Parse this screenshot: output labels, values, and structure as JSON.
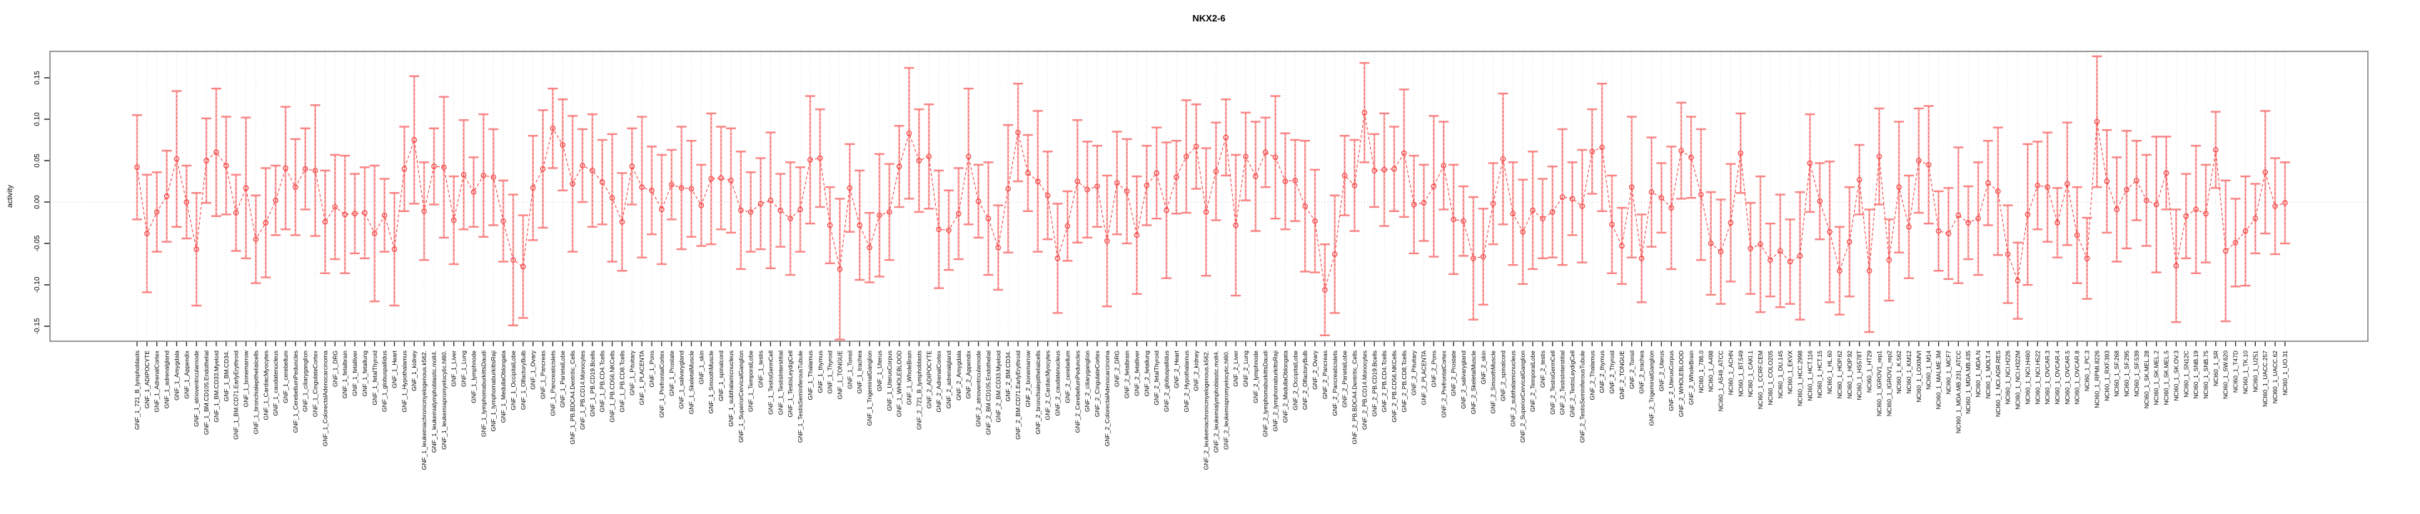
{
  "figure": {
    "title": "NKX2-6",
    "ylabel": "activity"
  },
  "chart_data": {
    "type": "line",
    "subtype": "point-with-error-bars",
    "title": "NKX2-6",
    "xlabel": "",
    "ylabel": "activity",
    "ylim": [
      -0.168,
      0.182
    ],
    "yticks": [
      0.15,
      0.1,
      0.05,
      0.0,
      -0.05,
      -0.1,
      -0.15
    ],
    "ytick_labels": [
      "0.15",
      "0.10",
      "0.05",
      "0.00",
      "-0.05",
      "-0.10",
      "-0.15"
    ],
    "grid": "vertical dotted gridline at every category; dotted horizontal line at zero",
    "legend": "none",
    "colors": {
      "point": "#f64545",
      "line": "#f64545",
      "error_stem": "#f9a0a0",
      "error_cap": "#f98383",
      "gridline": "#d9d9d9",
      "zero_line": "#d0d0d0",
      "box": "#808080",
      "tick": "#222222"
    },
    "categories": [
      "GNF_1_721_B_lymphoblasts",
      "GNF_1_ADIPOCYTE",
      "GNF_1_AdrenalCortex",
      "GNF_1_adrenalgland",
      "GNF_1_Amygdala",
      "GNF_1_Appendix",
      "GNF_1_atrioventricularnode",
      "GNF_1_BM.CD105.Endothelial",
      "GNF_1_BM.CD33.Myeloid",
      "GNF_1_BM.CD34.",
      "GNF_1_BM.CD71.EarlyErythroid",
      "GNF_1_bonemarrow",
      "GNF_1_bronchialepithelialcells",
      "GNF_1_CardiacMyocytes",
      "GNF_1_caudatenucleus",
      "GNF_1_cerebellum",
      "GNF_1_CerebellumPeduncles",
      "GNF_1_ciliaryganglion",
      "GNF_1_CingulateCortex",
      "GNF_1_ColorectalAdenocarcinoma",
      "GNF_1_DRG",
      "GNF_1_fetalbrain",
      "GNF_1_fetalliver",
      "GNF_1_fetallung",
      "GNF_1_fetalThyroid",
      "GNF_1_globuspallidus",
      "GNF_1_Heart",
      "GNF_1_Hypothalamus",
      "GNF_1_kidney",
      "GNF_1_leukemiachronicmyelogenous.k562.",
      "GNF_1_leukemialymphoblastic.molt4.",
      "GNF_1_leukemiapromyelocytic.hl60.",
      "GNF_1_Liver",
      "GNF_1_Lung",
      "GNF_1_lymphnode",
      "GNF_1_lymphomaburkittsDaudi",
      "GNF_1_lymphomaburkittsRaji",
      "GNF_1_MedullaOblongata",
      "GNF_1_OccipitalLobe",
      "GNF_1_OlfactoryBulb",
      "GNF_1_Ovary",
      "GNF_1_Pancreas",
      "GNF_1_Pancreaticislets",
      "GNF_1_ParietalLobe",
      "GNF_1_PB.BDCA4.Dentritic_Cells",
      "GNF_1_PB.CD14.Monocytes",
      "GNF_1_PB.CD19.Bcells",
      "GNF_1_PB.CD4.Tcells",
      "GNF_1_PB.CD56.NKCells",
      "GNF_1_PB.CD8.Tcells",
      "GNF_1_Pituitary",
      "GNF_1_PLACENTA",
      "GNF_1_Pons",
      "GNF_1_PrefrontalCortex",
      "GNF_1_Prostate",
      "GNF_1_salivarygland",
      "GNF_1_SkeletalMuscle",
      "GNF_1_skin",
      "GNF_1_SmoothMuscle",
      "GNF_1_spinalcord",
      "GNF_1_subthalamicnucleus",
      "GNF_1_SuperiorCervicalGanglion",
      "GNF_1_TemporalLobe",
      "GNF_1_testis",
      "GNF_1_TestisGermCell",
      "GNF_1_TestisInterstitial",
      "GNF_1_TestisLeydigCell",
      "GNF_1_TestisSeminiferousTubule",
      "GNF_1_Thalamus",
      "GNF_1_thymus",
      "GNF_1_Thyroid",
      "GNF_1_TONGUE",
      "GNF_1_Tonsil",
      "GNF_1_trachea",
      "GNF_1_TrigeminalGanglion",
      "GNF_1_Uterus",
      "GNF_1_UterusCorpus",
      "GNF_1_WHOLEBLOOD",
      "GNF_1_WholeBrain",
      "GNF_2_721_B_lymphoblasts",
      "GNF_2_ADIPOCYTE",
      "GNF_2_AdrenalCortex",
      "GNF_2_adrenalgland",
      "GNF_2_Amygdala",
      "GNF_2_Appendix",
      "GNF_2_atrioventricularnode",
      "GNF_2_BM.CD105.Endothelial",
      "GNF_2_BM.CD33.Myeloid",
      "GNF_2_BM.CD34.",
      "GNF_2_BM.CD71.EarlyErythroid",
      "GNF_2_bonemarrow",
      "GNF_2_bronchialepithelialcells",
      "GNF_2_CardiacMyocytes",
      "GNF_2_caudatenucleus",
      "GNF_2_cerebellum",
      "GNF_2_CerebellumPeduncles",
      "GNF_2_ciliaryganglion",
      "GNF_2_CingulateCortex",
      "GNF_2_ColorectalAdenocarcinoma",
      "GNF_2_DRG",
      "GNF_2_fetalbrain",
      "GNF_2_fetalliver",
      "GNF_2_fetallung",
      "GNF_2_fetalThyroid",
      "GNF_2_globuspallidus",
      "GNF_2_Heart",
      "GNF_2_Hypothalamus",
      "GNF_2_kidney",
      "GNF_2_leukemiachronicmyelogenous.k562.",
      "GNF_2_leukemialymphoblastic.molt4.",
      "GNF_2_leukemiapromyelocytic.hl60.",
      "GNF_2_Liver",
      "GNF_2_Lung",
      "GNF_2_lymphnode",
      "GNF_2_lymphomaburkittsDaudi",
      "GNF_2_lymphomaburkittsRaji",
      "GNF_2_MedullaOblongata",
      "GNF_2_OccipitalLobe",
      "GNF_2_OlfactoryBulb",
      "GNF_2_Ovary",
      "GNF_2_Pancreas",
      "GNF_2_Pancreaticislets",
      "GNF_2_ParietalLobe",
      "GNF_2_PB.BDCA4.Dentritic_Cells",
      "GNF_2_PB.CD14.Monocytes",
      "GNF_2_PB.CD19.Bcells",
      "GNF_2_PB.CD4.Tcells",
      "GNF_2_PB.CD56.NKCells",
      "GNF_2_PB.CD8.Tcells",
      "GNF_2_Pituitary",
      "GNF_2_PLACENTA",
      "GNF_2_Pons",
      "GNF_2_PrefrontalCortex",
      "GNF_2_Prostate",
      "GNF_2_salivarygland",
      "GNF_2_SkeletalMuscle",
      "GNF_2_skin",
      "GNF_2_SmoothMuscle",
      "GNF_2_spinalcord",
      "GNF_2_subthalamicnucleus",
      "GNF_2_SuperiorCervicalGanglion",
      "GNF_2_TemporalLobe",
      "GNF_2_testis",
      "GNF_2_TestisGermCell",
      "GNF_2_TestisInterstitial",
      "GNF_2_TestisLeydigCell",
      "GNF_2_TestisSeminiferousTubule",
      "GNF_2_Thalamus",
      "GNF_2_thymus",
      "GNF_2_Thyroid",
      "GNF_2_TONGUE",
      "GNF_2_Tonsil",
      "GNF_2_trachea",
      "GNF_2_TrigeminalGanglion",
      "GNF_2_Uterus",
      "GNF_2_UterusCorpus",
      "GNF_2_WHOLEBLOOD",
      "GNF_2_WholeBrain",
      "NCI60_1_786.0",
      "NCI60_1_A498",
      "NCI60_1_A549_ATCC",
      "NCI60_1_ACHN",
      "NCI60_1_BT.549",
      "NCI60_1_CAKI.1",
      "NCI60_1_CCRF.CEM",
      "NCI60_1_COLO205",
      "NCI60_1_DU.145",
      "NCI60_1_EKVX",
      "NCI60_1_HCC.2998",
      "NCI60_1_HCT.116",
      "NCI60_1_HCT.15",
      "NCI60_1_HL.60",
      "NCI60_1_HOP.62",
      "NCI60_1_HOP.92",
      "NCI60_1_HS578T",
      "NCI60_1_HT29",
      "NCI60_1_IGROV1_rep1",
      "NCI60_1_IGROV1_rep2",
      "NCI60_1_K.562",
      "NCI60_1_KM12",
      "NCI60_1_LOXIMVI",
      "NCI60_1_M14",
      "NCI60_1_MALME.3M",
      "NCI60_1_MCF7",
      "NCI60_1_MDA.MB.231_ATCC",
      "NCI60_1_MDA.MB.435",
      "NCI60_1_MDA.N",
      "NCI60_1_MOLT.4",
      "NCI60_1_NCI.ADR.RES",
      "NCI60_1_NCI.H226",
      "NCI60_1_NCI.H322M",
      "NCI60_1_NCI.H460",
      "NCI60_1_NCI.H522",
      "NCI60_1_OVCAR.3",
      "NCI60_1_OVCAR.4",
      "NCI60_1_OVCAR.5",
      "NCI60_1_OVCAR.8",
      "NCI60_1_PC.3",
      "NCI60_1_RPMI.8226",
      "NCI60_1_RXF.393",
      "NCI60_1_SF.268",
      "NCI60_1_SF.295",
      "NCI60_1_SF.539",
      "NCI60_1_SK.MEL.28",
      "NCI60_1_SK.MEL.2",
      "NCI60_1_SK.MEL.5",
      "NCI60_1_SK.OV.3",
      "NCI60_1_SN12C",
      "NCI60_1_SNB.19",
      "NCI60_1_SNB.75",
      "NCI60_1_SR",
      "NCI60_1_SW.620",
      "NCI60_1_T47D",
      "NCI60_1_TK.10",
      "NCI60_1_U251",
      "NCI60_1_UACC.257",
      "NCI60_1_UACC.62",
      "NCI60_1_UO.31"
    ],
    "values": [
      0.042,
      -0.038,
      -0.012,
      0.007,
      0.052,
      0.0,
      -0.057,
      0.05,
      0.06,
      0.044,
      -0.013,
      0.017,
      -0.045,
      -0.025,
      0.002,
      0.041,
      0.018,
      0.04,
      0.038,
      -0.024,
      -0.006,
      -0.015,
      -0.014,
      -0.013,
      -0.038,
      -0.016,
      -0.057,
      0.04,
      0.075,
      -0.011,
      0.043,
      0.042,
      -0.022,
      0.033,
      0.012,
      0.032,
      0.03,
      -0.023,
      -0.07,
      -0.078,
      0.017,
      0.04,
      0.089,
      0.069,
      0.022,
      0.044,
      0.038,
      0.024,
      0.005,
      -0.024,
      0.043,
      0.018,
      0.014,
      -0.009,
      0.021,
      0.017,
      0.016,
      -0.004,
      0.028,
      0.029,
      0.026,
      -0.01,
      -0.012,
      -0.002,
      0.002,
      -0.01,
      -0.02,
      -0.009,
      0.051,
      0.053,
      -0.028,
      -0.081,
      0.017,
      -0.028,
      -0.055,
      -0.016,
      -0.012,
      0.043,
      0.083,
      0.05,
      0.055,
      -0.033,
      -0.034,
      -0.014,
      0.055,
      0.001,
      -0.02,
      -0.055,
      0.016,
      0.084,
      0.035,
      0.025,
      0.008,
      -0.068,
      -0.029,
      0.025,
      0.015,
      0.019,
      -0.047,
      0.023,
      0.013,
      -0.04,
      0.02,
      0.035,
      -0.01,
      0.03,
      0.055,
      0.067,
      -0.012,
      0.037,
      0.078,
      -0.028,
      0.055,
      0.031,
      0.06,
      0.054,
      0.025,
      0.026,
      -0.005,
      -0.023,
      -0.106,
      -0.063,
      0.032,
      0.02,
      0.108,
      0.038,
      0.039,
      0.04,
      0.059,
      -0.003,
      -0.001,
      0.019,
      0.044,
      -0.021,
      -0.023,
      -0.068,
      -0.066,
      -0.002,
      0.052,
      -0.014,
      -0.036,
      -0.01,
      -0.02,
      -0.012,
      0.006,
      0.004,
      -0.005,
      0.061,
      0.066,
      -0.027,
      -0.053,
      0.018,
      -0.068,
      0.012,
      0.005,
      -0.007,
      0.062,
      0.054,
      0.009,
      -0.05,
      -0.06,
      -0.025,
      0.059,
      -0.056,
      -0.051,
      -0.07,
      -0.059,
      -0.072,
      -0.065,
      0.047,
      0.001,
      -0.036,
      -0.083,
      -0.048,
      0.027,
      -0.083,
      0.055,
      -0.07,
      0.018,
      -0.03,
      0.05,
      0.045,
      -0.035,
      -0.038,
      -0.016,
      -0.025,
      -0.02,
      0.023,
      0.013,
      -0.063,
      -0.095,
      -0.015,
      0.02,
      0.018,
      -0.025,
      0.022,
      -0.04,
      -0.068,
      0.097,
      0.025,
      -0.009,
      0.015,
      0.026,
      0.002,
      -0.003,
      0.035,
      -0.077,
      -0.017,
      -0.009,
      -0.014,
      0.063,
      -0.059,
      -0.049,
      -0.035,
      -0.02,
      0.036,
      -0.005,
      -0.001
    ],
    "errors": [
      0.063,
      0.071,
      0.048,
      0.055,
      0.082,
      0.044,
      0.068,
      0.051,
      0.077,
      0.059,
      0.046,
      0.085,
      0.053,
      0.066,
      0.042,
      0.074,
      0.058,
      0.049,
      0.079,
      0.062,
      0.063,
      0.071,
      0.048,
      0.055,
      0.082,
      0.044,
      0.068,
      0.051,
      0.077,
      0.059,
      0.046,
      0.085,
      0.053,
      0.066,
      0.042,
      0.074,
      0.058,
      0.049,
      0.079,
      0.062,
      0.063,
      0.071,
      0.048,
      0.055,
      0.082,
      0.044,
      0.068,
      0.051,
      0.077,
      0.059,
      0.046,
      0.085,
      0.053,
      0.066,
      0.042,
      0.074,
      0.058,
      0.049,
      0.079,
      0.062,
      0.063,
      0.071,
      0.048,
      0.055,
      0.082,
      0.044,
      0.068,
      0.051,
      0.077,
      0.059,
      0.046,
      0.085,
      0.053,
      0.066,
      0.042,
      0.074,
      0.058,
      0.049,
      0.079,
      0.062,
      0.063,
      0.071,
      0.048,
      0.055,
      0.082,
      0.044,
      0.068,
      0.051,
      0.077,
      0.059,
      0.046,
      0.085,
      0.053,
      0.066,
      0.042,
      0.074,
      0.058,
      0.049,
      0.079,
      0.062,
      0.063,
      0.071,
      0.048,
      0.055,
      0.082,
      0.044,
      0.068,
      0.051,
      0.077,
      0.059,
      0.046,
      0.085,
      0.053,
      0.066,
      0.042,
      0.074,
      0.058,
      0.049,
      0.079,
      0.062,
      0.055,
      0.071,
      0.048,
      0.055,
      0.06,
      0.044,
      0.068,
      0.051,
      0.077,
      0.059,
      0.046,
      0.085,
      0.053,
      0.066,
      0.042,
      0.074,
      0.058,
      0.049,
      0.079,
      0.062,
      0.063,
      0.071,
      0.048,
      0.055,
      0.082,
      0.044,
      0.068,
      0.051,
      0.077,
      0.059,
      0.046,
      0.085,
      0.053,
      0.066,
      0.042,
      0.074,
      0.058,
      0.049,
      0.079,
      0.062,
      0.063,
      0.071,
      0.048,
      0.055,
      0.082,
      0.044,
      0.068,
      0.051,
      0.077,
      0.059,
      0.046,
      0.085,
      0.053,
      0.066,
      0.042,
      0.074,
      0.058,
      0.049,
      0.079,
      0.062,
      0.063,
      0.071,
      0.048,
      0.055,
      0.082,
      0.044,
      0.068,
      0.051,
      0.077,
      0.059,
      0.046,
      0.085,
      0.053,
      0.066,
      0.042,
      0.074,
      0.058,
      0.049,
      0.079,
      0.062,
      0.063,
      0.071,
      0.048,
      0.055,
      0.082,
      0.044,
      0.068,
      0.051,
      0.077,
      0.059,
      0.046,
      0.085,
      0.053,
      0.066,
      0.042,
      0.074,
      0.058,
      0.049
    ]
  }
}
